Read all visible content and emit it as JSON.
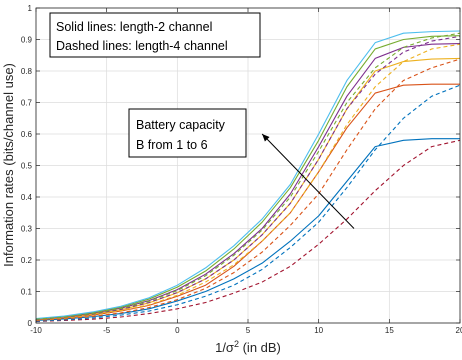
{
  "chart_data": {
    "type": "line",
    "xlabel_base": "1/σ",
    "xlabel_sup": "2",
    "xlabel_suffix": " (in dB)",
    "ylabel": "Information rates (bits/channel use)",
    "xlim": [
      -10,
      20
    ],
    "ylim": [
      0,
      1
    ],
    "xticks": [
      -10,
      -5,
      0,
      5,
      10,
      15,
      20
    ],
    "yticks": [
      0,
      0.1,
      0.2,
      0.3,
      0.4,
      0.5,
      0.6,
      0.7,
      0.8,
      0.9,
      1
    ],
    "grid": true,
    "x": [
      -10,
      -8,
      -6,
      -4,
      -2,
      0,
      2,
      4,
      6,
      8,
      10,
      12,
      14,
      16,
      18,
      20
    ],
    "series": [
      {
        "color": "#0072BD",
        "dash": false,
        "values": [
          0.008,
          0.013,
          0.02,
          0.03,
          0.045,
          0.07,
          0.1,
          0.14,
          0.19,
          0.26,
          0.34,
          0.45,
          0.56,
          0.58,
          0.585,
          0.585
        ]
      },
      {
        "color": "#D95319",
        "dash": false,
        "values": [
          0.01,
          0.016,
          0.025,
          0.038,
          0.056,
          0.085,
          0.12,
          0.18,
          0.26,
          0.35,
          0.48,
          0.62,
          0.73,
          0.755,
          0.758,
          0.758
        ]
      },
      {
        "color": "#EDB120",
        "dash": false,
        "values": [
          0.011,
          0.018,
          0.028,
          0.042,
          0.064,
          0.096,
          0.14,
          0.2,
          0.28,
          0.38,
          0.52,
          0.68,
          0.8,
          0.83,
          0.838,
          0.84
        ]
      },
      {
        "color": "#7E2F8E",
        "dash": false,
        "values": [
          0.012,
          0.02,
          0.031,
          0.047,
          0.071,
          0.106,
          0.155,
          0.22,
          0.3,
          0.41,
          0.56,
          0.72,
          0.84,
          0.875,
          0.885,
          0.887
        ]
      },
      {
        "color": "#77AC30",
        "dash": false,
        "values": [
          0.013,
          0.021,
          0.033,
          0.05,
          0.076,
          0.114,
          0.165,
          0.235,
          0.32,
          0.43,
          0.58,
          0.75,
          0.87,
          0.9,
          0.91,
          0.912
        ]
      },
      {
        "color": "#4DBEEE",
        "dash": false,
        "values": [
          0.014,
          0.022,
          0.035,
          0.053,
          0.08,
          0.12,
          0.175,
          0.245,
          0.33,
          0.44,
          0.6,
          0.77,
          0.89,
          0.92,
          0.925,
          0.927
        ]
      },
      {
        "color": "#A2142F",
        "dash": true,
        "values": [
          0.005,
          0.008,
          0.012,
          0.019,
          0.03,
          0.045,
          0.065,
          0.095,
          0.13,
          0.18,
          0.25,
          0.33,
          0.42,
          0.5,
          0.56,
          0.58
        ]
      },
      {
        "color": "#0072BD",
        "dash": true,
        "values": [
          0.006,
          0.01,
          0.016,
          0.025,
          0.038,
          0.058,
          0.085,
          0.12,
          0.17,
          0.24,
          0.32,
          0.43,
          0.55,
          0.65,
          0.72,
          0.755
        ]
      },
      {
        "color": "#D95319",
        "dash": true,
        "values": [
          0.008,
          0.013,
          0.021,
          0.032,
          0.049,
          0.074,
          0.11,
          0.16,
          0.225,
          0.31,
          0.41,
          0.55,
          0.68,
          0.77,
          0.81,
          0.838
        ]
      },
      {
        "color": "#EDB120",
        "dash": true,
        "values": [
          0.01,
          0.016,
          0.025,
          0.039,
          0.058,
          0.088,
          0.13,
          0.185,
          0.26,
          0.35,
          0.48,
          0.63,
          0.75,
          0.83,
          0.87,
          0.885
        ]
      },
      {
        "color": "#7E2F8E",
        "dash": true,
        "values": [
          0.011,
          0.018,
          0.028,
          0.043,
          0.065,
          0.097,
          0.14,
          0.2,
          0.28,
          0.38,
          0.52,
          0.68,
          0.79,
          0.86,
          0.895,
          0.91
        ]
      },
      {
        "color": "#77AC30",
        "dash": true,
        "values": [
          0.012,
          0.019,
          0.03,
          0.046,
          0.069,
          0.103,
          0.15,
          0.215,
          0.295,
          0.4,
          0.545,
          0.7,
          0.81,
          0.875,
          0.905,
          0.92
        ]
      }
    ],
    "legend_text": {
      "line1": "Solid lines: length-2 channel",
      "line2": "Dashed lines: length-4 channel"
    },
    "annotation": {
      "line1": "Battery capacity",
      "line2": "B from 1 to 6",
      "arrow_from": [
        12.5,
        0.3
      ],
      "arrow_to": [
        6,
        0.6
      ]
    }
  }
}
